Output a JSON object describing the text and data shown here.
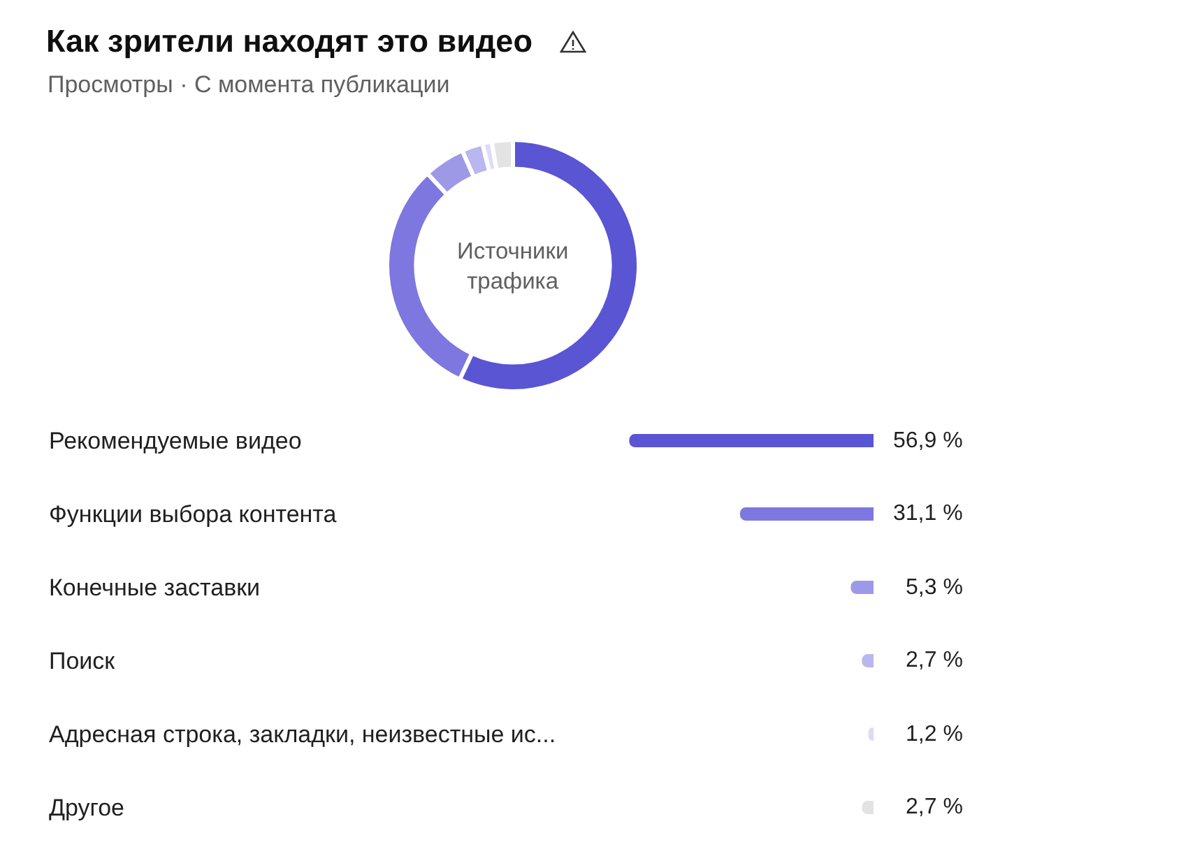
{
  "chart_data": [
    {
      "type": "donut",
      "title": "Как зрители находят это видео",
      "subtitle": "Просмотры · С момента публикации",
      "annotations": [
        "Источники\nтрафика"
      ],
      "categories": [
        null,
        null,
        null,
        null,
        null,
        null
      ],
      "values": [
        56.9,
        31.1,
        5.3,
        2.7,
        1.2,
        2.7
      ],
      "colors": [
        "#5a55d3",
        "#7d77df",
        "#9e99e7",
        "#bab6ef",
        "#dddbf7",
        "#e3e3e3"
      ]
    },
    {
      "type": "bar",
      "orientation": "horizontal",
      "categories": [
        "Рекомендуемые видео",
        "Функции выбора контента",
        "Конечные заставки",
        "Поиск",
        "Адресная строка, закладки, неизвестные ис...",
        "Другое"
      ],
      "values": [
        56.9,
        31.1,
        5.3,
        2.7,
        1.2,
        2.7
      ],
      "colors": [
        "#5a55d3",
        "#7d77df",
        "#9e99e7",
        "#bab6ef",
        "#dddbf7",
        "#e3e3e3"
      ],
      "value_labels": [
        "56,9 %",
        "31,1 %",
        "5,3 %",
        "2,7 %",
        "1,2 %",
        "2,7 %"
      ],
      "tick_labels": "y"
    }
  ]
}
